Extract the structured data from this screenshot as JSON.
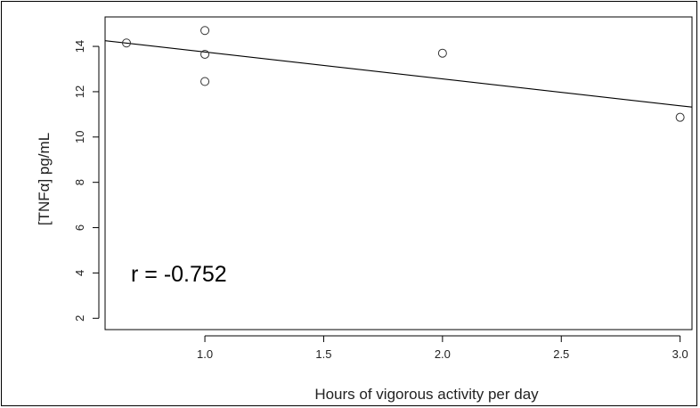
{
  "chart_data": {
    "type": "scatter",
    "title": "",
    "xlabel": "Hours of vigorous activity per day",
    "ylabel": "[TNFα] pg/mL",
    "xlim": [
      0.58,
      3.05
    ],
    "ylim": [
      1.5,
      15.3
    ],
    "xticks": [
      1.0,
      1.5,
      2.0,
      2.5,
      3.0
    ],
    "xtick_labels": [
      "1.0",
      "1.5",
      "2.0",
      "2.5",
      "3.0"
    ],
    "yticks": [
      2,
      4,
      6,
      8,
      10,
      12,
      14
    ],
    "ytick_labels": [
      "2",
      "4",
      "6",
      "8",
      "10",
      "12",
      "14"
    ],
    "grid": false,
    "legend": "none",
    "points": [
      {
        "x": 0.67,
        "y": 14.15
      },
      {
        "x": 1.0,
        "y": 14.7
      },
      {
        "x": 1.0,
        "y": 13.65
      },
      {
        "x": 1.0,
        "y": 12.45
      },
      {
        "x": 2.0,
        "y": 13.7
      },
      {
        "x": 3.0,
        "y": 10.87
      }
    ],
    "fit_line": {
      "x": [
        0.58,
        3.05
      ],
      "y": [
        14.25,
        11.32
      ]
    },
    "annotation": "r = -0.752",
    "colors": {
      "points": "#333333",
      "line": "#000000",
      "axes": "#000000"
    }
  }
}
